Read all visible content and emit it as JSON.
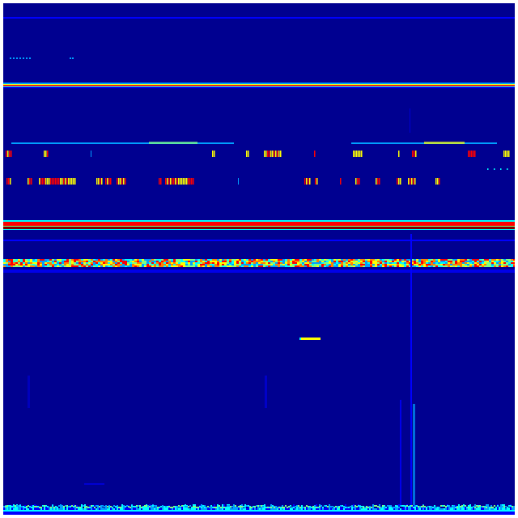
{
  "image": {
    "kind": "spectrogram",
    "background_color": "#000090",
    "colormap": [
      "#00008f",
      "#0000ff",
      "#00a0ff",
      "#00ffff",
      "#80ff80",
      "#ffff00",
      "#ff8000",
      "#ff0000",
      "#800000"
    ]
  }
}
